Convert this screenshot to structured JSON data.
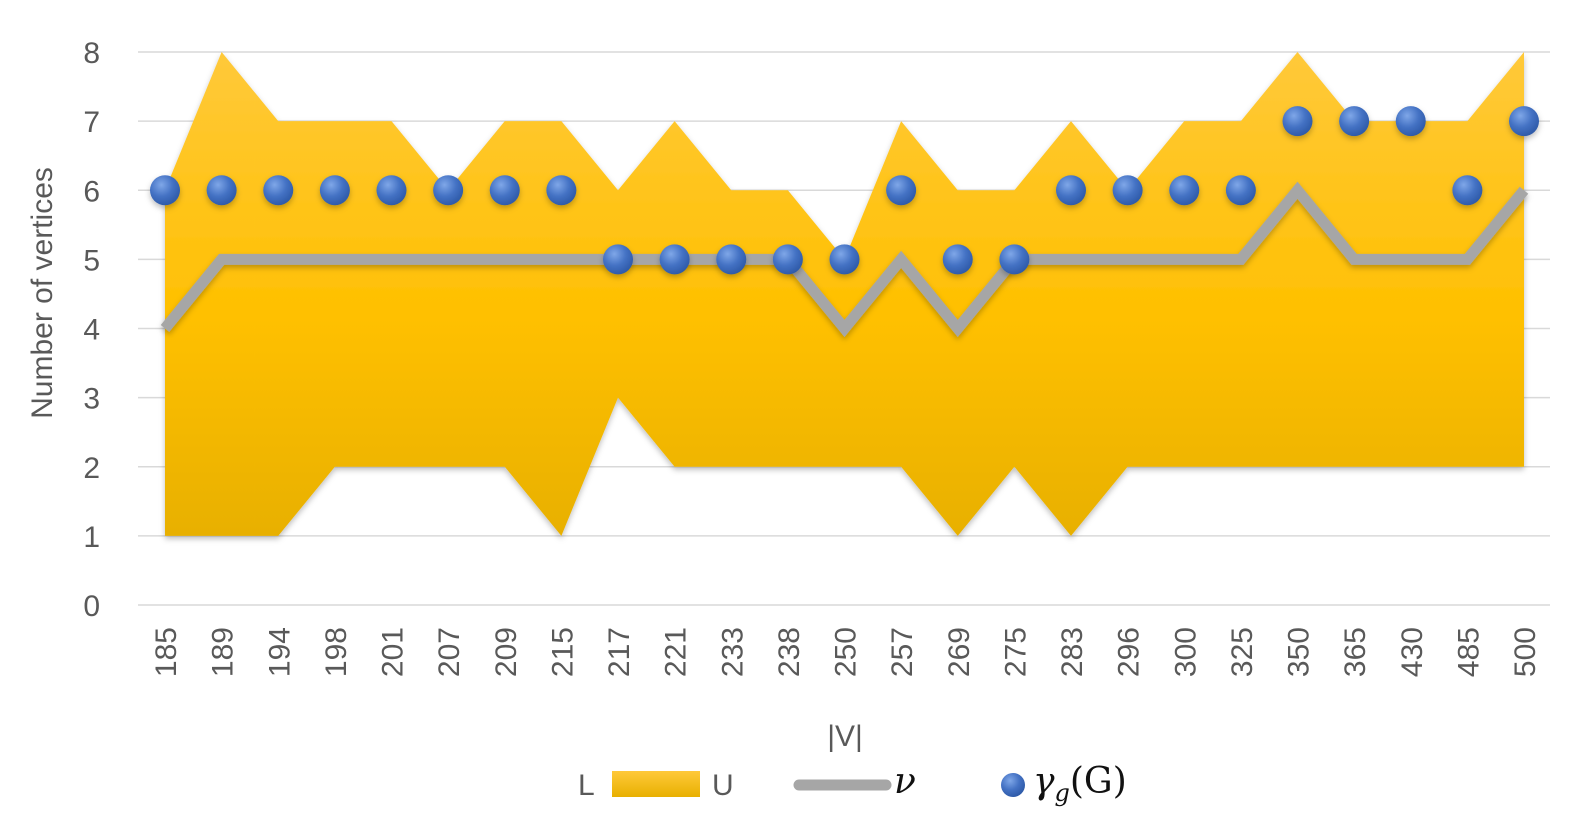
{
  "chart_data": {
    "type": "area",
    "title": "",
    "xlabel": "|V|",
    "ylabel": "Number of vertices",
    "ylim": [
      0,
      8
    ],
    "yticks": [
      "0",
      "1",
      "2",
      "3",
      "4",
      "5",
      "6",
      "7",
      "8"
    ],
    "grid": true,
    "legend_position": "bottom",
    "categories": [
      "185",
      "189",
      "194",
      "198",
      "201",
      "207",
      "209",
      "215",
      "217",
      "221",
      "233",
      "238",
      "250",
      "257",
      "269",
      "275",
      "283",
      "296",
      "300",
      "325",
      "350",
      "365",
      "430",
      "485",
      "500"
    ],
    "band": {
      "lower_name": "L",
      "upper_name": "U",
      "lower": [
        1,
        1,
        1,
        2,
        2,
        2,
        2,
        1,
        3,
        2,
        2,
        2,
        2,
        2,
        1,
        2,
        1,
        2,
        2,
        2,
        2,
        2,
        2,
        2,
        2
      ],
      "upper": [
        6,
        8,
        7,
        7,
        7,
        6,
        7,
        7,
        6,
        7,
        6,
        6,
        5,
        7,
        6,
        6,
        7,
        6,
        7,
        7,
        8,
        7,
        7,
        7,
        8
      ],
      "color": "#FFC000"
    },
    "series": [
      {
        "name": "ν",
        "type": "line",
        "color": "#A6A6A6",
        "values": [
          4,
          5,
          5,
          5,
          5,
          5,
          5,
          5,
          5,
          5,
          5,
          5,
          4,
          5,
          4,
          5,
          5,
          5,
          5,
          5,
          6,
          5,
          5,
          5,
          6
        ]
      },
      {
        "name": "γg(G)",
        "type": "scatter",
        "color": "#4472C4",
        "values": [
          6,
          6,
          6,
          6,
          6,
          6,
          6,
          6,
          5,
          5,
          5,
          5,
          5,
          6,
          5,
          5,
          6,
          6,
          6,
          6,
          7,
          7,
          7,
          6,
          7
        ]
      }
    ]
  },
  "legend": {
    "lower_label": "L",
    "upper_label": "U",
    "nu_symbol": "ν",
    "gamma_symbol": "γ",
    "gamma_subscript": "g",
    "gamma_arg": "(G)"
  }
}
